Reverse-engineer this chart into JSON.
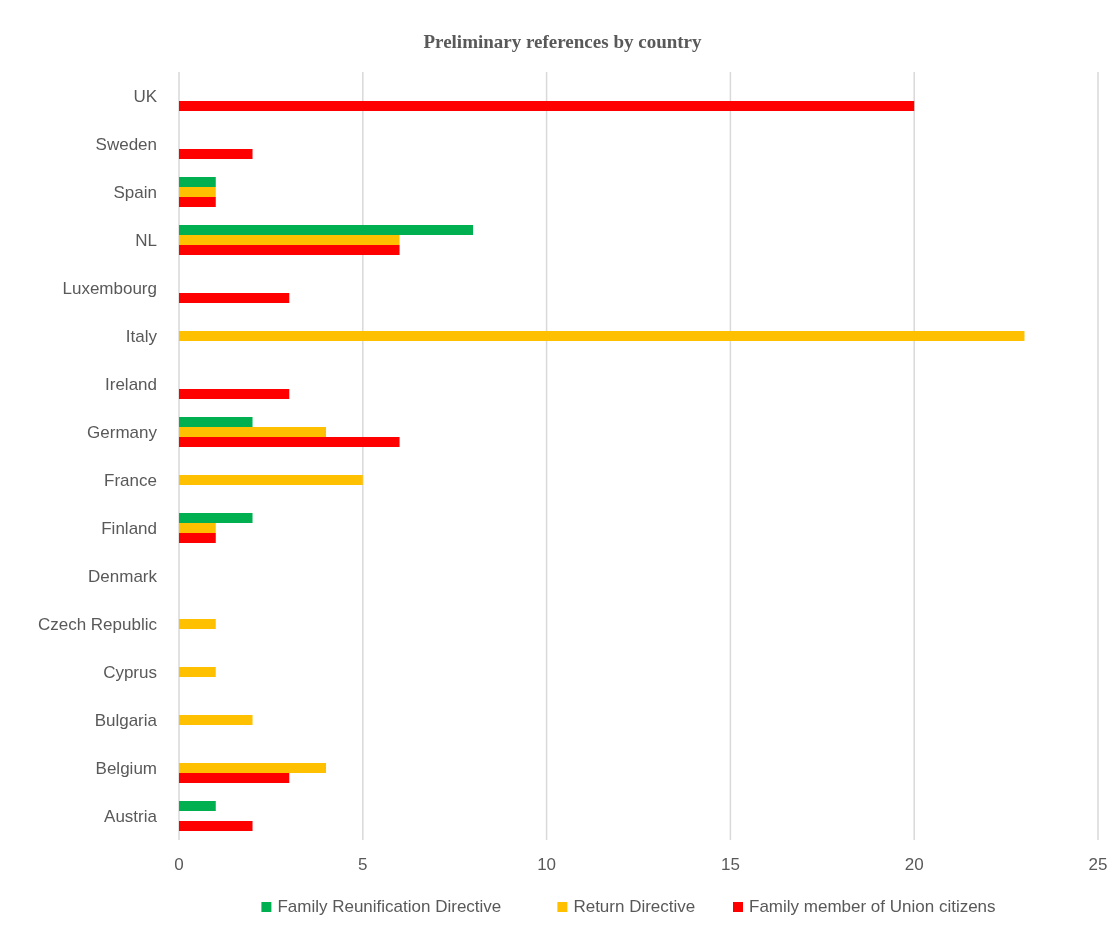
{
  "chart_data": {
    "type": "bar",
    "orientation": "horizontal",
    "title": "Preliminary references by country",
    "categories": [
      "UK",
      "Sweden",
      "Spain",
      "NL",
      "Luxembourg",
      "Italy",
      "Ireland",
      "Germany",
      "France",
      "Finland",
      "Denmark",
      "Czech Republic",
      "Cyprus",
      "Bulgaria",
      "Belgium",
      "Austria"
    ],
    "series": [
      {
        "name": "Family Reunification Directive",
        "color": "#00b050",
        "values": [
          0,
          0,
          1,
          8,
          0,
          0,
          0,
          2,
          0,
          2,
          0,
          0,
          0,
          0,
          0,
          1
        ]
      },
      {
        "name": "Return Directive",
        "color": "#ffc000",
        "values": [
          0,
          0,
          1,
          6,
          0,
          23,
          0,
          4,
          5,
          1,
          0,
          1,
          1,
          2,
          4,
          0
        ]
      },
      {
        "name": "Family member of Union citizens",
        "color": "#ff0000",
        "values": [
          20,
          2,
          1,
          6,
          3,
          0,
          3,
          6,
          0,
          1,
          0,
          0,
          0,
          0,
          3,
          2
        ]
      }
    ],
    "xlim": [
      0,
      25
    ],
    "xticks": [
      0,
      5,
      10,
      15,
      20,
      25
    ],
    "grid": "x",
    "legend": "bottom"
  }
}
